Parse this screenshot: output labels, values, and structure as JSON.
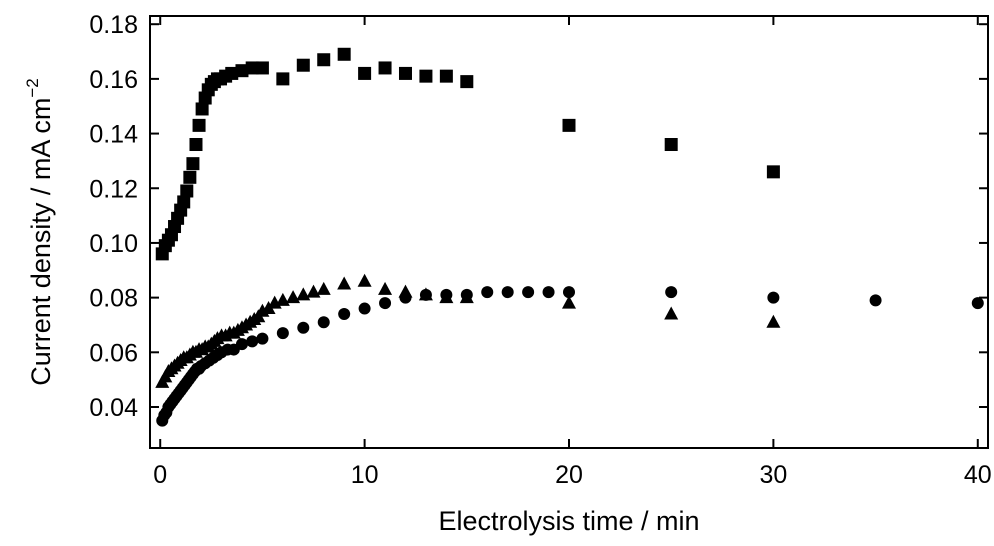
{
  "chart_data": {
    "type": "scatter",
    "xlabel": "Electrolysis time / min",
    "ylabel": "Current density / mA cm",
    "ylabel_superscript": "−2",
    "xlim": [
      -0.5,
      40.5
    ],
    "ylim": [
      0.025,
      0.183
    ],
    "xticks": [
      0,
      10,
      20,
      30,
      40
    ],
    "xtick_labels": [
      "0",
      "10",
      "20",
      "30",
      "40"
    ],
    "yticks": [
      0.04,
      0.06,
      0.08,
      0.1,
      0.12,
      0.14,
      0.16,
      0.18
    ],
    "ytick_labels": [
      "0.04",
      "0.06",
      "0.08",
      "0.10",
      "0.12",
      "0.14",
      "0.16",
      "0.18"
    ],
    "grid": false,
    "series": [
      {
        "marker": "square",
        "x": [
          0.1,
          0.25,
          0.4,
          0.55,
          0.7,
          0.85,
          1.0,
          1.15,
          1.3,
          1.45,
          1.6,
          1.75,
          1.9,
          2.05,
          2.2,
          2.35,
          2.5,
          2.65,
          2.8,
          2.95,
          3.2,
          3.5,
          4.0,
          4.5,
          5.0,
          6.0,
          7.0,
          8.0,
          9.0,
          10.0,
          11.0,
          12.0,
          13.0,
          14.0,
          15.0,
          20.0,
          25.0,
          30.0
        ],
        "y": [
          0.096,
          0.099,
          0.101,
          0.103,
          0.106,
          0.109,
          0.112,
          0.115,
          0.119,
          0.124,
          0.129,
          0.136,
          0.143,
          0.149,
          0.153,
          0.156,
          0.158,
          0.159,
          0.16,
          0.16,
          0.161,
          0.162,
          0.163,
          0.164,
          0.164,
          0.16,
          0.165,
          0.167,
          0.169,
          0.162,
          0.164,
          0.162,
          0.161,
          0.161,
          0.159,
          0.143,
          0.136,
          0.126
        ]
      },
      {
        "marker": "circle",
        "x": [
          0.1,
          0.2,
          0.3,
          0.4,
          0.5,
          0.6,
          0.7,
          0.8,
          0.9,
          1.0,
          1.1,
          1.2,
          1.3,
          1.4,
          1.5,
          1.6,
          1.7,
          1.8,
          1.9,
          2.0,
          2.2,
          2.4,
          2.6,
          2.8,
          3.0,
          3.3,
          3.6,
          4.0,
          4.5,
          5.0,
          6.0,
          7.0,
          8.0,
          9.0,
          10.0,
          11.0,
          12.0,
          13.0,
          14.0,
          15.0,
          16.0,
          17.0,
          18.0,
          19.0,
          20.0,
          25.0,
          30.0,
          35.0,
          40.0
        ],
        "y": [
          0.035,
          0.037,
          0.038,
          0.04,
          0.041,
          0.042,
          0.043,
          0.044,
          0.045,
          0.046,
          0.047,
          0.048,
          0.049,
          0.05,
          0.051,
          0.052,
          0.053,
          0.054,
          0.054,
          0.055,
          0.056,
          0.057,
          0.058,
          0.059,
          0.06,
          0.061,
          0.061,
          0.063,
          0.064,
          0.065,
          0.067,
          0.069,
          0.071,
          0.074,
          0.076,
          0.078,
          0.08,
          0.081,
          0.081,
          0.081,
          0.082,
          0.082,
          0.082,
          0.082,
          0.082,
          0.082,
          0.08,
          0.079,
          0.078
        ]
      },
      {
        "marker": "triangle",
        "x": [
          0.1,
          0.25,
          0.4,
          0.55,
          0.7,
          0.85,
          1.0,
          1.15,
          1.3,
          1.45,
          1.6,
          1.75,
          1.9,
          2.05,
          2.2,
          2.35,
          2.5,
          2.65,
          2.8,
          3.0,
          3.2,
          3.4,
          3.6,
          3.8,
          4.0,
          4.2,
          4.4,
          4.6,
          4.8,
          5.0,
          5.3,
          5.6,
          6.0,
          6.5,
          7.0,
          7.5,
          8.0,
          9.0,
          10.0,
          11.0,
          12.0,
          13.0,
          14.0,
          15.0,
          20.0,
          25.0,
          30.0
        ],
        "y": [
          0.049,
          0.051,
          0.053,
          0.054,
          0.055,
          0.056,
          0.057,
          0.058,
          0.058,
          0.059,
          0.06,
          0.06,
          0.061,
          0.061,
          0.062,
          0.062,
          0.063,
          0.064,
          0.065,
          0.066,
          0.066,
          0.067,
          0.067,
          0.068,
          0.069,
          0.07,
          0.071,
          0.072,
          0.073,
          0.075,
          0.076,
          0.078,
          0.079,
          0.08,
          0.081,
          0.082,
          0.083,
          0.085,
          0.086,
          0.083,
          0.082,
          0.081,
          0.08,
          0.08,
          0.078,
          0.074,
          0.071
        ]
      }
    ]
  }
}
